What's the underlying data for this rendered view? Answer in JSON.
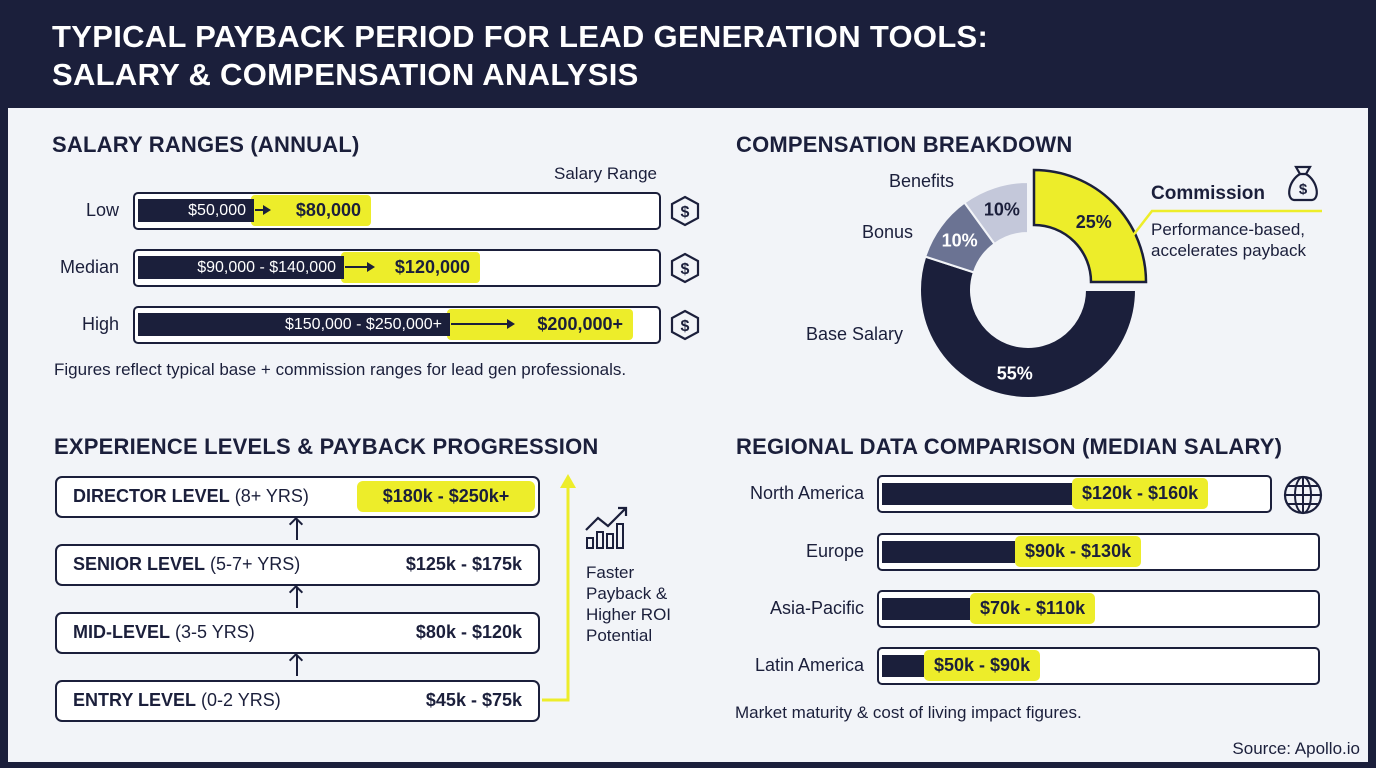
{
  "title_line1": "TYPICAL PAYBACK PERIOD FOR LEAD GENERATION TOOLS:",
  "title_line2": "SALARY & COMPENSATION ANALYSIS",
  "salary": {
    "heading": "SALARY RANGES (ANNUAL)",
    "axis_label": "Salary Range",
    "rows": [
      {
        "label": "Low",
        "range": "$50,000",
        "value": "$80,000"
      },
      {
        "label": "Median",
        "range": "$90,000 - $140,000",
        "value": "$120,000"
      },
      {
        "label": "High",
        "range": "$150,000 - $250,000+",
        "value": "$200,000+"
      }
    ],
    "icon": "dollar-hexagon-icon",
    "note": "Figures reflect typical base + commission ranges for lead gen professionals."
  },
  "chart_data": {
    "type": "pie",
    "title": "COMPENSATION BREAKDOWN",
    "donut": true,
    "slices": [
      {
        "label": "Commission",
        "value": 25,
        "text": "25%",
        "color": "#eded2a"
      },
      {
        "label": "Base Salary",
        "value": 55,
        "text": "55%",
        "color": "#1b1f3b"
      },
      {
        "label": "Bonus",
        "value": 10,
        "text": "10%",
        "color": "#6b7393"
      },
      {
        "label": "Benefits",
        "value": 10,
        "text": "10%",
        "color": "#c4c8da"
      }
    ],
    "callout": {
      "title": "Commission",
      "text1": "Performance-based,",
      "text2": "accelerates payback",
      "icon": "money-bag-icon"
    }
  },
  "experience": {
    "heading": "EXPERIENCE LEVELS & PAYBACK PROGRESSION",
    "levels": [
      {
        "name": "DIRECTOR LEVEL",
        "years": "(8+ YRS)",
        "range": "$180k - $250k+"
      },
      {
        "name": "SENIOR LEVEL",
        "years": "(5-7+ YRS)",
        "range": "$125k - $175k"
      },
      {
        "name": "MID-LEVEL",
        "years": "(3-5 YRS)",
        "range": "$80k - $120k"
      },
      {
        "name": "ENTRY LEVEL",
        "years": "(0-2 YRS)",
        "range": "$45k - $75k"
      }
    ],
    "side_note": [
      "Faster",
      "Payback &",
      "Higher ROI",
      "Potential"
    ],
    "icon": "growth-chart-icon"
  },
  "regional": {
    "heading": "REGIONAL DATA COMPARISON (MEDIAN SALARY)",
    "rows": [
      {
        "region": "North America",
        "range": "$120k - $160k"
      },
      {
        "region": "Europe",
        "range": "$90k - $130k"
      },
      {
        "region": "Asia-Pacific",
        "range": "$70k - $110k"
      },
      {
        "region": "Latin America",
        "range": "$50k - $90k"
      }
    ],
    "icon": "globe-icon",
    "note": "Market maturity & cost of living impact figures."
  },
  "source": "Source: Apollo.io",
  "colors": {
    "navy": "#1b1f3b",
    "yellow": "#eded2a",
    "background": "#f2f4f8"
  }
}
